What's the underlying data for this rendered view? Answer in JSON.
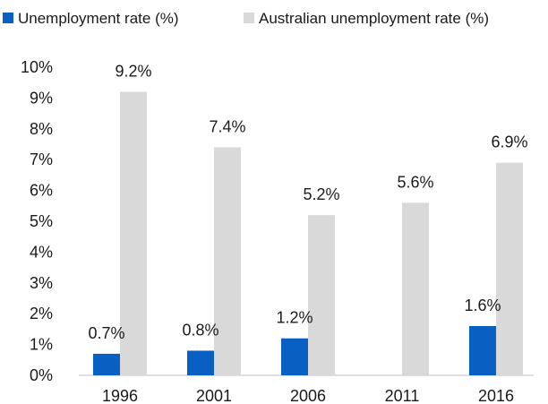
{
  "chart_data": {
    "type": "bar",
    "categories": [
      "1996",
      "2001",
      "2006",
      "2011",
      "2016"
    ],
    "series": [
      {
        "name": "Unemployment rate (%)",
        "values": [
          0.7,
          0.8,
          1.2,
          null,
          1.6
        ],
        "labels": [
          "0.7%",
          "0.8%",
          "1.2%",
          "",
          "1.6%"
        ],
        "color": "#0a5fc2"
      },
      {
        "name": "Australian unemployment rate (%)",
        "values": [
          9.2,
          7.4,
          5.2,
          5.6,
          6.9
        ],
        "labels": [
          "9.2%",
          "7.4%",
          "5.2%",
          "5.6%",
          "6.9%"
        ],
        "color": "#d9d9d9"
      }
    ],
    "yticks": [
      "0%",
      "1%",
      "2%",
      "3%",
      "4%",
      "5%",
      "6%",
      "7%",
      "8%",
      "9%",
      "10%"
    ],
    "ylim": [
      0,
      10
    ],
    "grid": false,
    "legend_position": "top"
  }
}
